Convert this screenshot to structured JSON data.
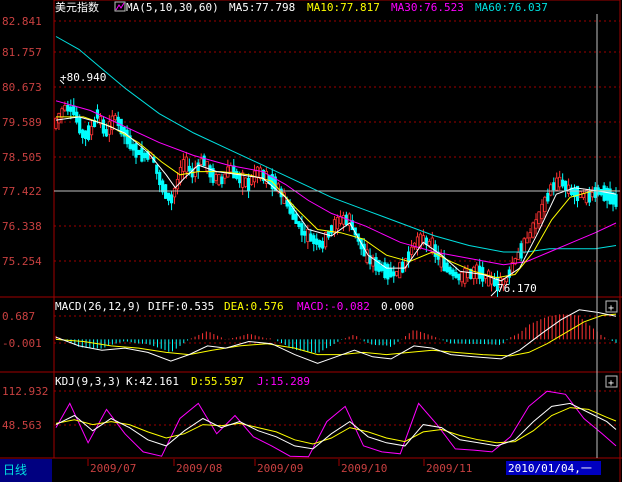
{
  "colors": {
    "background": "#000000",
    "frame": "#a00000",
    "grid": "#a00000",
    "axis_text": "#c84040",
    "up": "#ff3232",
    "down": "#00ffff",
    "ma5": "#ffffff",
    "ma10": "#ffff00",
    "ma30": "#ff00ff",
    "ma60": "#00e0e0",
    "diff": "#ffffff",
    "dea": "#ffff00",
    "macd": "#ff00ff",
    "kdj_k": "#ffffff",
    "kdj_d": "#ffff00",
    "kdj_j": "#ff00ff",
    "cursor": "#c0c0c0",
    "date_box_bg": "#0000c0"
  },
  "price_panel": {
    "title": "美元指数",
    "ma_header": "MA(5,10,30,60)",
    "ma5_label": "MA5:77.798",
    "ma10_label": "MA10:77.817",
    "ma30_label": "MA30:76.523",
    "ma60_label": "MA60:76.037",
    "high_label": "80.940",
    "low_label": "76.170",
    "y_ticks": [
      "82.841",
      "81.757",
      "80.673",
      "79.589",
      "78.505",
      "77.422",
      "76.338",
      "75.254"
    ]
  },
  "macd_panel": {
    "header": "MACD(26,12,9)",
    "diff_label": "DIFF:0.535",
    "dea_label": "DEA:0.576",
    "macd_label": "MACD:-0.082",
    "extra_label": "0.000",
    "y_ticks": [
      "0.687",
      "-0.001"
    ],
    "expand_glyph": "+"
  },
  "kdj_panel": {
    "header": "KDJ(9,3,3)",
    "k_label": "K:42.161",
    "d_label": "D:55.597",
    "j_label": "J:15.289",
    "y_ticks": [
      "112.932",
      "48.563"
    ],
    "expand_glyph": "+"
  },
  "footer": {
    "period_label": "日线",
    "months": [
      "2009/07",
      "2009/08",
      "2009/09",
      "2009/10",
      "2009/11"
    ],
    "cursor_date": "2010/01/04,一"
  },
  "chart_data": {
    "type": "candlestick",
    "y_range": [
      74.5,
      83.3
    ],
    "x_range_label": "2009/06 - 2010/01/04",
    "close_path": [
      [
        0,
        79.9
      ],
      [
        4,
        80.4
      ],
      [
        8,
        80.3
      ],
      [
        12,
        79.5
      ],
      [
        16,
        79.7
      ],
      [
        18,
        80.2
      ],
      [
        22,
        79.6
      ],
      [
        26,
        80.1
      ],
      [
        30,
        79.6
      ],
      [
        34,
        79.1
      ],
      [
        38,
        78.9
      ],
      [
        42,
        78.9
      ],
      [
        46,
        78.0
      ],
      [
        50,
        77.5
      ],
      [
        52,
        77.8
      ],
      [
        56,
        78.7
      ],
      [
        60,
        78.3
      ],
      [
        64,
        78.8
      ],
      [
        68,
        78.3
      ],
      [
        72,
        78.1
      ],
      [
        76,
        78.5
      ],
      [
        80,
        78.2
      ],
      [
        84,
        78.0
      ],
      [
        88,
        78.4
      ],
      [
        92,
        78.2
      ],
      [
        96,
        78.0
      ],
      [
        100,
        77.5
      ],
      [
        104,
        77.0
      ],
      [
        108,
        76.5
      ],
      [
        112,
        76.3
      ],
      [
        116,
        76.1
      ],
      [
        120,
        76.6
      ],
      [
        124,
        76.9
      ],
      [
        128,
        76.9
      ],
      [
        132,
        76.3
      ],
      [
        136,
        75.7
      ],
      [
        140,
        75.5
      ],
      [
        144,
        75.3
      ],
      [
        148,
        75.2
      ],
      [
        152,
        75.5
      ],
      [
        156,
        76.1
      ],
      [
        160,
        76.3
      ],
      [
        164,
        76.1
      ],
      [
        168,
        75.6
      ],
      [
        172,
        75.3
      ],
      [
        176,
        75.1
      ],
      [
        180,
        75.2
      ],
      [
        184,
        75.3
      ],
      [
        188,
        75.1
      ],
      [
        192,
        74.9
      ],
      [
        196,
        75.0
      ],
      [
        200,
        75.6
      ],
      [
        204,
        76.1
      ],
      [
        208,
        76.6
      ],
      [
        212,
        77.2
      ],
      [
        216,
        77.9
      ],
      [
        220,
        78.1
      ],
      [
        224,
        77.8
      ],
      [
        228,
        77.7
      ],
      [
        232,
        77.6
      ],
      [
        236,
        77.8
      ],
      [
        240,
        77.7
      ],
      [
        244,
        77.5
      ]
    ],
    "candle_count": 190,
    "ma5_path": [
      [
        0,
        80.0
      ],
      [
        10,
        80.1
      ],
      [
        20,
        79.9
      ],
      [
        30,
        79.6
      ],
      [
        40,
        79.0
      ],
      [
        48,
        78.3
      ],
      [
        52,
        77.9
      ],
      [
        56,
        78.2
      ],
      [
        62,
        78.6
      ],
      [
        70,
        78.4
      ],
      [
        80,
        78.3
      ],
      [
        90,
        78.2
      ],
      [
        100,
        77.6
      ],
      [
        110,
        76.6
      ],
      [
        120,
        76.4
      ],
      [
        128,
        76.8
      ],
      [
        136,
        75.8
      ],
      [
        144,
        75.4
      ],
      [
        152,
        75.4
      ],
      [
        160,
        76.2
      ],
      [
        168,
        75.8
      ],
      [
        176,
        75.3
      ],
      [
        186,
        75.2
      ],
      [
        194,
        75.0
      ],
      [
        202,
        75.4
      ],
      [
        210,
        76.5
      ],
      [
        218,
        77.7
      ],
      [
        226,
        77.9
      ],
      [
        236,
        77.8
      ],
      [
        244,
        77.7
      ]
    ],
    "ma10_path": [
      [
        0,
        80.1
      ],
      [
        12,
        80.1
      ],
      [
        24,
        79.8
      ],
      [
        36,
        79.3
      ],
      [
        46,
        78.7
      ],
      [
        54,
        78.3
      ],
      [
        62,
        78.4
      ],
      [
        72,
        78.4
      ],
      [
        84,
        78.3
      ],
      [
        94,
        78.1
      ],
      [
        104,
        77.3
      ],
      [
        114,
        76.6
      ],
      [
        124,
        76.5
      ],
      [
        134,
        76.3
      ],
      [
        144,
        75.8
      ],
      [
        154,
        75.6
      ],
      [
        164,
        75.9
      ],
      [
        172,
        75.6
      ],
      [
        182,
        75.3
      ],
      [
        192,
        75.1
      ],
      [
        200,
        75.2
      ],
      [
        208,
        75.9
      ],
      [
        216,
        76.9
      ],
      [
        224,
        77.6
      ],
      [
        234,
        77.8
      ],
      [
        244,
        77.8
      ]
    ],
    "ma30_path": [
      [
        0,
        80.6
      ],
      [
        15,
        80.3
      ],
      [
        30,
        79.8
      ],
      [
        45,
        79.3
      ],
      [
        60,
        78.9
      ],
      [
        75,
        78.6
      ],
      [
        90,
        78.4
      ],
      [
        100,
        78.0
      ],
      [
        110,
        77.5
      ],
      [
        120,
        77.1
      ],
      [
        135,
        76.7
      ],
      [
        150,
        76.2
      ],
      [
        165,
        75.9
      ],
      [
        180,
        75.7
      ],
      [
        195,
        75.5
      ],
      [
        205,
        75.6
      ],
      [
        215,
        75.9
      ],
      [
        225,
        76.2
      ],
      [
        235,
        76.5
      ],
      [
        244,
        76.8
      ]
    ],
    "ma60_path": [
      [
        0,
        82.6
      ],
      [
        10,
        82.2
      ],
      [
        20,
        81.6
      ],
      [
        30,
        81.0
      ],
      [
        45,
        80.2
      ],
      [
        60,
        79.6
      ],
      [
        75,
        79.1
      ],
      [
        90,
        78.6
      ],
      [
        105,
        78.1
      ],
      [
        120,
        77.6
      ],
      [
        135,
        77.2
      ],
      [
        150,
        76.8
      ],
      [
        165,
        76.4
      ],
      [
        180,
        76.1
      ],
      [
        195,
        75.9
      ],
      [
        205,
        75.9
      ],
      [
        215,
        76.0
      ],
      [
        225,
        76.0
      ],
      [
        235,
        76.0
      ],
      [
        244,
        76.1
      ]
    ],
    "high": 80.94,
    "low": 76.17,
    "macd": {
      "y_range": [
        -0.75,
        0.95
      ],
      "diff_path": [
        [
          0,
          0.05
        ],
        [
          10,
          -0.15
        ],
        [
          20,
          -0.25
        ],
        [
          30,
          -0.2
        ],
        [
          40,
          -0.3
        ],
        [
          50,
          -0.5
        ],
        [
          58,
          -0.35
        ],
        [
          66,
          -0.15
        ],
        [
          74,
          -0.2
        ],
        [
          84,
          -0.05
        ],
        [
          94,
          -0.1
        ],
        [
          104,
          -0.35
        ],
        [
          114,
          -0.55
        ],
        [
          122,
          -0.4
        ],
        [
          130,
          -0.25
        ],
        [
          138,
          -0.4
        ],
        [
          146,
          -0.45
        ],
        [
          156,
          -0.15
        ],
        [
          164,
          -0.2
        ],
        [
          172,
          -0.35
        ],
        [
          182,
          -0.4
        ],
        [
          194,
          -0.45
        ],
        [
          202,
          -0.25
        ],
        [
          212,
          0.15
        ],
        [
          220,
          0.45
        ],
        [
          228,
          0.68
        ],
        [
          236,
          0.62
        ],
        [
          244,
          0.53
        ]
      ],
      "dea_path": [
        [
          0,
          0.0
        ],
        [
          12,
          -0.05
        ],
        [
          24,
          -0.15
        ],
        [
          36,
          -0.2
        ],
        [
          48,
          -0.3
        ],
        [
          58,
          -0.35
        ],
        [
          68,
          -0.25
        ],
        [
          80,
          -0.15
        ],
        [
          92,
          -0.1
        ],
        [
          104,
          -0.2
        ],
        [
          114,
          -0.35
        ],
        [
          124,
          -0.35
        ],
        [
          134,
          -0.3
        ],
        [
          144,
          -0.35
        ],
        [
          154,
          -0.3
        ],
        [
          164,
          -0.25
        ],
        [
          174,
          -0.3
        ],
        [
          186,
          -0.35
        ],
        [
          198,
          -0.38
        ],
        [
          206,
          -0.3
        ],
        [
          214,
          -0.1
        ],
        [
          222,
          0.15
        ],
        [
          230,
          0.4
        ],
        [
          238,
          0.55
        ],
        [
          244,
          0.58
        ]
      ]
    },
    "kdj": {
      "y_range": [
        -5,
        135
      ],
      "k_path": [
        [
          0,
          50
        ],
        [
          8,
          65
        ],
        [
          16,
          40
        ],
        [
          24,
          60
        ],
        [
          32,
          45
        ],
        [
          40,
          25
        ],
        [
          48,
          15
        ],
        [
          56,
          40
        ],
        [
          64,
          60
        ],
        [
          72,
          45
        ],
        [
          80,
          55
        ],
        [
          88,
          40
        ],
        [
          96,
          30
        ],
        [
          104,
          15
        ],
        [
          112,
          10
        ],
        [
          120,
          35
        ],
        [
          128,
          55
        ],
        [
          136,
          30
        ],
        [
          144,
          20
        ],
        [
          152,
          15
        ],
        [
          160,
          50
        ],
        [
          168,
          45
        ],
        [
          176,
          25
        ],
        [
          184,
          20
        ],
        [
          192,
          15
        ],
        [
          200,
          25
        ],
        [
          208,
          55
        ],
        [
          216,
          80
        ],
        [
          224,
          85
        ],
        [
          232,
          70
        ],
        [
          240,
          55
        ],
        [
          244,
          42
        ]
      ],
      "d_path": [
        [
          0,
          52
        ],
        [
          8,
          58
        ],
        [
          16,
          50
        ],
        [
          24,
          55
        ],
        [
          32,
          50
        ],
        [
          40,
          38
        ],
        [
          48,
          28
        ],
        [
          56,
          35
        ],
        [
          64,
          50
        ],
        [
          72,
          48
        ],
        [
          80,
          52
        ],
        [
          88,
          45
        ],
        [
          96,
          38
        ],
        [
          104,
          25
        ],
        [
          112,
          18
        ],
        [
          120,
          28
        ],
        [
          128,
          45
        ],
        [
          136,
          38
        ],
        [
          144,
          28
        ],
        [
          152,
          22
        ],
        [
          160,
          38
        ],
        [
          168,
          42
        ],
        [
          176,
          32
        ],
        [
          184,
          25
        ],
        [
          192,
          20
        ],
        [
          200,
          22
        ],
        [
          208,
          40
        ],
        [
          216,
          65
        ],
        [
          224,
          78
        ],
        [
          232,
          75
        ],
        [
          240,
          62
        ],
        [
          244,
          56
        ]
      ],
      "j_path": [
        [
          0,
          45
        ],
        [
          6,
          85
        ],
        [
          14,
          20
        ],
        [
          22,
          75
        ],
        [
          30,
          35
        ],
        [
          38,
          5
        ],
        [
          46,
          -2
        ],
        [
          54,
          60
        ],
        [
          62,
          85
        ],
        [
          70,
          35
        ],
        [
          78,
          65
        ],
        [
          86,
          30
        ],
        [
          94,
          15
        ],
        [
          102,
          -2
        ],
        [
          110,
          -3
        ],
        [
          118,
          55
        ],
        [
          126,
          80
        ],
        [
          134,
          15
        ],
        [
          142,
          5
        ],
        [
          150,
          2
        ],
        [
          158,
          85
        ],
        [
          166,
          50
        ],
        [
          174,
          10
        ],
        [
          182,
          8
        ],
        [
          190,
          5
        ],
        [
          198,
          30
        ],
        [
          206,
          80
        ],
        [
          214,
          105
        ],
        [
          222,
          100
        ],
        [
          230,
          60
        ],
        [
          238,
          35
        ],
        [
          244,
          15
        ]
      ]
    }
  }
}
